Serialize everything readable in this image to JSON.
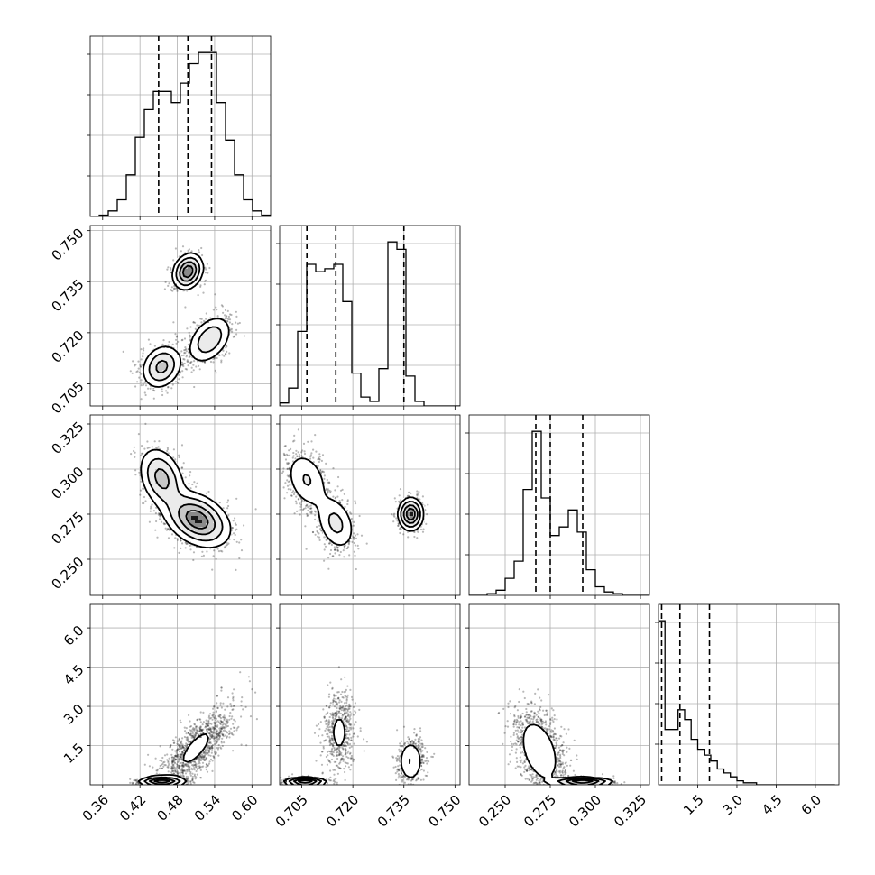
{
  "chart_data": {
    "type": "corner",
    "parameters": [
      {
        "ticks": [
          0.36,
          0.42,
          0.48,
          0.54,
          0.6
        ],
        "tick_labels": [
          "0.36",
          "0.42",
          "0.48",
          "0.54",
          "0.60"
        ],
        "range": [
          0.34,
          0.63
        ],
        "quantiles": [
          0.45,
          0.497,
          0.535
        ],
        "histogram": {
          "edges_start": 0.34,
          "bin_width": 0.0145,
          "counts": [
            0,
            1,
            4,
            12,
            30,
            57,
            77,
            90,
            90,
            82,
            96,
            110,
            118,
            118,
            82,
            55,
            30,
            12,
            4,
            1
          ]
        }
      },
      {
        "ticks": [
          0.705,
          0.72,
          0.735,
          0.75
        ],
        "tick_labels": [
          "0.705",
          "0.720",
          "0.735",
          "0.750"
        ],
        "range": [
          0.6985,
          0.7515
        ],
        "quantiles": [
          0.7065,
          0.715,
          0.735
        ],
        "histogram": {
          "edges_start": 0.6985,
          "bin_width": 0.00265,
          "counts": [
            2,
            12,
            50,
            95,
            90,
            92,
            95,
            70,
            22,
            6,
            3,
            25,
            110,
            105,
            20,
            3,
            0,
            0,
            0,
            0
          ]
        }
      },
      {
        "ticks": [
          0.25,
          0.275,
          0.3,
          0.325
        ],
        "tick_labels": [
          "0.250",
          "0.275",
          "0.300",
          "0.325"
        ],
        "range": [
          0.23,
          0.33
        ],
        "quantiles": [
          0.267,
          0.275,
          0.293
        ],
        "histogram": {
          "edges_start": 0.23,
          "bin_width": 0.005,
          "counts": [
            0,
            0,
            1,
            3,
            10,
            20,
            62,
            96,
            57,
            35,
            40,
            50,
            37,
            15,
            5,
            2,
            1,
            0,
            0,
            0
          ]
        }
      },
      {
        "ticks": [
          1.5,
          3.0,
          4.5,
          6.0
        ],
        "tick_labels": [
          "1.5",
          "3.0",
          "4.5",
          "6.0"
        ],
        "range": [
          0.0,
          6.9
        ],
        "quantiles": [
          0.12,
          0.82,
          1.95
        ],
        "histogram": {
          "edges_start": 0.0,
          "bin_width": 0.25,
          "counts": [
            83,
            28,
            28,
            38,
            33,
            23,
            18,
            15,
            12,
            8,
            6,
            4,
            2,
            1,
            1,
            0,
            0,
            0,
            0,
            0,
            0,
            0,
            0,
            0,
            0,
            0,
            0
          ]
        }
      }
    ],
    "scatter": [
      {
        "row": 1,
        "col": 0,
        "modes": [
          {
            "cx": 0.497,
            "cy": 0.738,
            "sx": 0.012,
            "sy": 0.0026,
            "rho": 0.2,
            "weight": 0.32
          },
          {
            "cx": 0.455,
            "cy": 0.71,
            "sx": 0.016,
            "sy": 0.0032,
            "rho": 0.2,
            "weight": 0.34
          },
          {
            "cx": 0.532,
            "cy": 0.718,
            "sx": 0.018,
            "sy": 0.0036,
            "rho": 0.4,
            "weight": 0.34
          }
        ]
      },
      {
        "row": 2,
        "col": 0,
        "modes": [
          {
            "cx": 0.455,
            "cy": 0.295,
            "sx": 0.018,
            "sy": 0.0085,
            "rho": -0.3,
            "weight": 0.34
          },
          {
            "cx": 0.512,
            "cy": 0.272,
            "sx": 0.026,
            "sy": 0.0075,
            "rho": -0.35,
            "weight": 0.66
          }
        ]
      },
      {
        "row": 2,
        "col": 1,
        "modes": [
          {
            "cx": 0.7065,
            "cy": 0.294,
            "sx": 0.0033,
            "sy": 0.0085,
            "rho": -0.3,
            "weight": 0.34
          },
          {
            "cx": 0.715,
            "cy": 0.27,
            "sx": 0.003,
            "sy": 0.008,
            "rho": -0.3,
            "weight": 0.34
          },
          {
            "cx": 0.737,
            "cy": 0.275,
            "sx": 0.0018,
            "sy": 0.0045,
            "rho": 0.0,
            "weight": 0.32
          }
        ]
      },
      {
        "row": 3,
        "col": 0,
        "modes": [
          {
            "cx": 0.455,
            "cy": 0.12,
            "sx": 0.018,
            "sy": 0.1,
            "rho": 0.0,
            "weight": 0.33
          },
          {
            "cx": 0.51,
            "cy": 1.4,
            "sx": 0.03,
            "sy": 0.8,
            "rho": 0.75,
            "weight": 0.67
          }
        ]
      },
      {
        "row": 3,
        "col": 1,
        "modes": [
          {
            "cx": 0.706,
            "cy": 0.1,
            "sx": 0.003,
            "sy": 0.09,
            "rho": 0.0,
            "weight": 0.34
          },
          {
            "cx": 0.716,
            "cy": 2.0,
            "sx": 0.0025,
            "sy": 0.8,
            "rho": 0.0,
            "weight": 0.34
          },
          {
            "cx": 0.737,
            "cy": 0.9,
            "sx": 0.002,
            "sy": 0.45,
            "rho": 0.0,
            "weight": 0.32
          }
        ]
      },
      {
        "row": 3,
        "col": 2,
        "modes": [
          {
            "cx": 0.269,
            "cy": 1.3,
            "sx": 0.0075,
            "sy": 0.85,
            "rho": -0.4,
            "weight": 0.66
          },
          {
            "cx": 0.293,
            "cy": 0.1,
            "sx": 0.008,
            "sy": 0.09,
            "rho": 0.0,
            "weight": 0.34
          }
        ]
      }
    ]
  }
}
